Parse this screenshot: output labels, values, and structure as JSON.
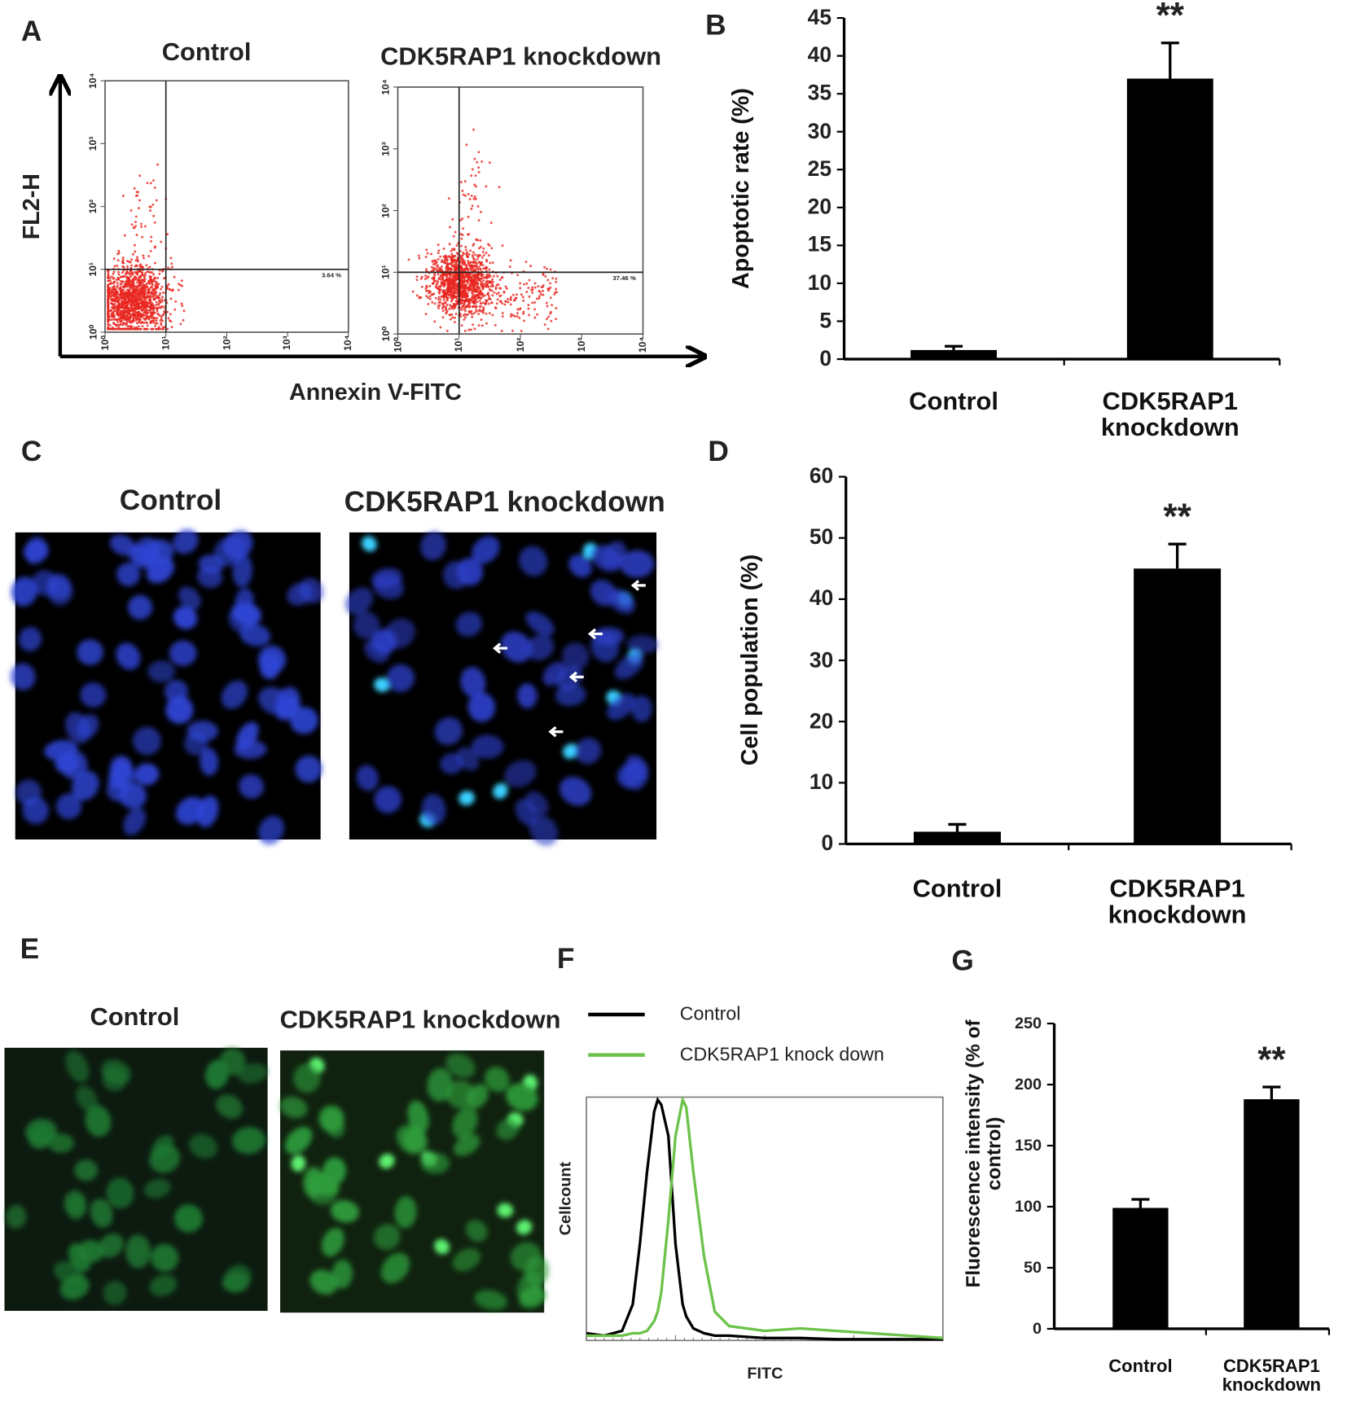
{
  "panel_labels": [
    "A",
    "B",
    "C",
    "D",
    "E",
    "F",
    "G"
  ],
  "flow": {
    "x_label": "Annexin V-FITC",
    "y_label": "FL2-H",
    "scale": "log",
    "lim": [
      1,
      10000
    ],
    "ticks": [
      {
        "value": 1,
        "label": "10⁰"
      },
      {
        "value": 10,
        "label": "10¹"
      },
      {
        "value": 100,
        "label": "10²"
      },
      {
        "value": 1000,
        "label": "10³"
      },
      {
        "value": 10000,
        "label": "10⁴"
      }
    ],
    "gate": 10,
    "plots": [
      {
        "title": "Control",
        "quadrant_label": "3.64 %"
      },
      {
        "title": "CDK5RAP1 knockdown",
        "quadrant_label": "37.46 %"
      }
    ]
  },
  "images": [
    {
      "title": "Control"
    },
    {
      "title": "CDK5RAP1 knockdown"
    },
    {
      "title": "Control"
    },
    {
      "title": "CDK5RAP1 knockdown"
    }
  ],
  "chart_data": [
    {
      "type": "bar",
      "y_label": "Apoptotic rate (%)",
      "categories": [
        "Control",
        "CDK5RAP1 knockdown"
      ],
      "values": [
        1.2,
        37
      ],
      "errors": [
        0.5,
        4.7
      ],
      "annotations": [
        null,
        "**"
      ],
      "color": "#000000",
      "ylim": [
        0,
        45
      ],
      "yticks": [
        0,
        5,
        10,
        15,
        20,
        25,
        30,
        35,
        40,
        45
      ]
    },
    {
      "type": "bar",
      "y_label": "Cell population (%)",
      "categories": [
        "Control",
        "CDK5RAP1 knockdown"
      ],
      "values": [
        2,
        45
      ],
      "errors": [
        1.2,
        4
      ],
      "annotations": [
        null,
        "**"
      ],
      "color": "#000000",
      "ylim": [
        0,
        60
      ],
      "yticks": [
        0,
        10,
        20,
        30,
        40,
        50,
        60
      ]
    },
    {
      "type": "line",
      "x_label": "FITC",
      "y_label": "Cellcount",
      "xlim": [
        0,
        100
      ],
      "ylim": [
        0,
        100
      ],
      "x": [
        0,
        5,
        10,
        13,
        15,
        17,
        19,
        20,
        21,
        23,
        25,
        27,
        28,
        30,
        33,
        36,
        40,
        50,
        60,
        70,
        80,
        90,
        100
      ],
      "series": [
        {
          "name": "Control",
          "color": "#000000",
          "values": [
            3,
            2,
            4,
            15,
            40,
            70,
            95,
            100,
            98,
            85,
            40,
            15,
            10,
            5,
            3,
            2,
            2,
            1,
            1,
            0.5,
            0.5,
            0.5,
            0.5
          ]
        },
        {
          "name": "CDK5RAP1 knock down",
          "color": "#6cc24a",
          "values": [
            2,
            2,
            2,
            3,
            3,
            4,
            8,
            12,
            20,
            50,
            85,
            100,
            97,
            70,
            35,
            12,
            6,
            4,
            5,
            4,
            3,
            2,
            1
          ]
        }
      ]
    },
    {
      "type": "bar",
      "y_label": "Fluorescence intensity (% of control)",
      "categories": [
        "Control",
        "CDK5RAP1 knockdown"
      ],
      "values": [
        99,
        188
      ],
      "errors": [
        7,
        10
      ],
      "annotations": [
        null,
        "**"
      ],
      "color": "#000000",
      "ylim": [
        0,
        250
      ],
      "yticks": [
        0,
        50,
        100,
        150,
        200,
        250
      ]
    }
  ]
}
